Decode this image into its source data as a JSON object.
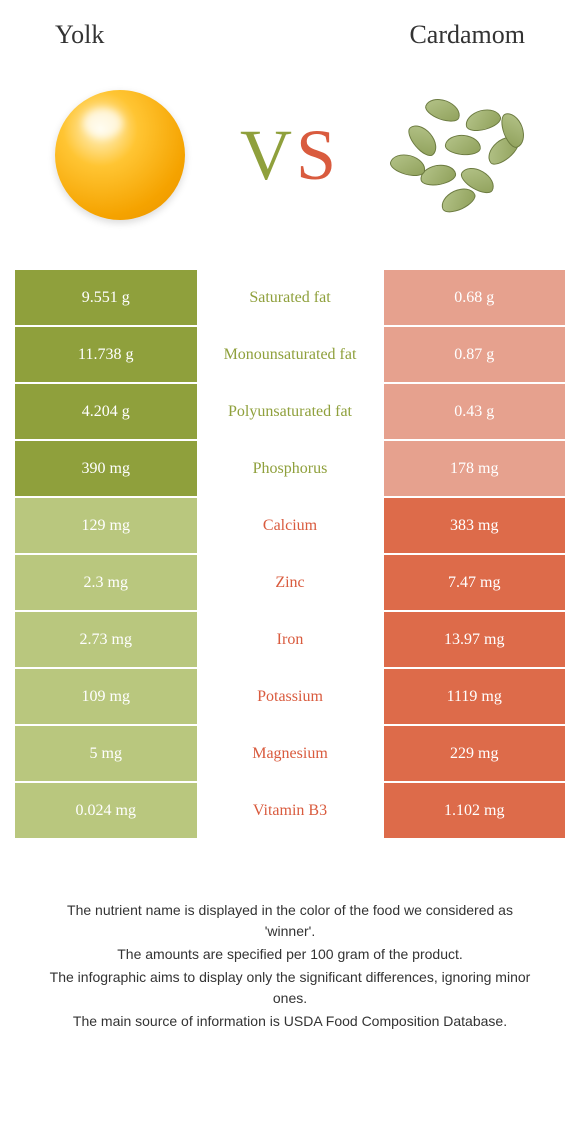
{
  "header": {
    "left": "Yolk",
    "right": "Cardamom"
  },
  "vs": {
    "v": "V",
    "s": "S"
  },
  "colors": {
    "left_bg_strong": "#8fa03c",
    "left_bg_weak": "#b9c77e",
    "right_bg_strong": "#dd6b4a",
    "right_bg_weak": "#e6a18e",
    "mid_left_text": "#d95b3e",
    "mid_right_text": "#8fa03c"
  },
  "rows": [
    {
      "left": "9.551 g",
      "label": "Saturated fat",
      "right": "0.68 g",
      "winner": "left"
    },
    {
      "left": "11.738 g",
      "label": "Monounsaturated fat",
      "right": "0.87 g",
      "winner": "left"
    },
    {
      "left": "4.204 g",
      "label": "Polyunsaturated fat",
      "right": "0.43 g",
      "winner": "left"
    },
    {
      "left": "390 mg",
      "label": "Phosphorus",
      "right": "178 mg",
      "winner": "left"
    },
    {
      "left": "129 mg",
      "label": "Calcium",
      "right": "383 mg",
      "winner": "right"
    },
    {
      "left": "2.3 mg",
      "label": "Zinc",
      "right": "7.47 mg",
      "winner": "right"
    },
    {
      "left": "2.73 mg",
      "label": "Iron",
      "right": "13.97 mg",
      "winner": "right"
    },
    {
      "left": "109 mg",
      "label": "Potassium",
      "right": "1119 mg",
      "winner": "right"
    },
    {
      "left": "5 mg",
      "label": "Magnesium",
      "right": "229 mg",
      "winner": "right"
    },
    {
      "left": "0.024 mg",
      "label": "Vitamin B3",
      "right": "1.102 mg",
      "winner": "right"
    }
  ],
  "footer": [
    "The nutrient name is displayed in the color of the food we considered as 'winner'.",
    "The amounts are specified per 100 gram of the product.",
    "The infographic aims to display only the significant differences, ignoring minor ones.",
    "The main source of information is USDA Food Composition Database."
  ]
}
